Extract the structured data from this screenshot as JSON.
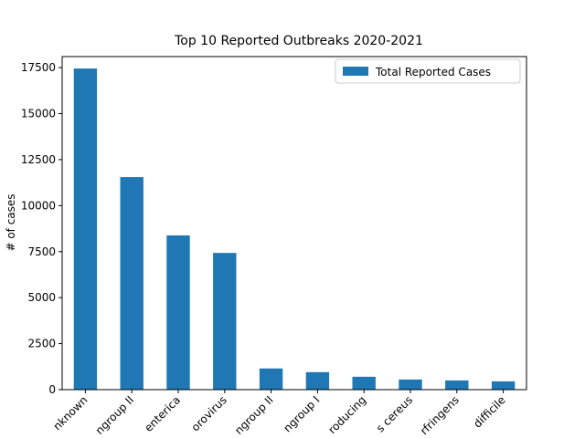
{
  "chart_data": {
    "type": "bar",
    "title": "Top 10 Reported Outbreaks 2020-2021",
    "y_label": "# of cases",
    "categories": [
      "nknown",
      "ngroup II",
      "enterica",
      "orovirus",
      "ngroup II",
      "ngroup I",
      "roducing",
      "s cereus",
      "rfringens",
      "difficile"
    ],
    "series": [
      {
        "name": "Total Reported Cases",
        "color": "#1f77b4",
        "values": [
          17450,
          11550,
          8380,
          7430,
          1150,
          950,
          700,
          550,
          500,
          450
        ]
      }
    ],
    "ylim": [
      0,
      18100
    ],
    "yticks": [
      0,
      2500,
      5000,
      7500,
      10000,
      12500,
      15000,
      17500
    ],
    "legend": "upper right"
  }
}
